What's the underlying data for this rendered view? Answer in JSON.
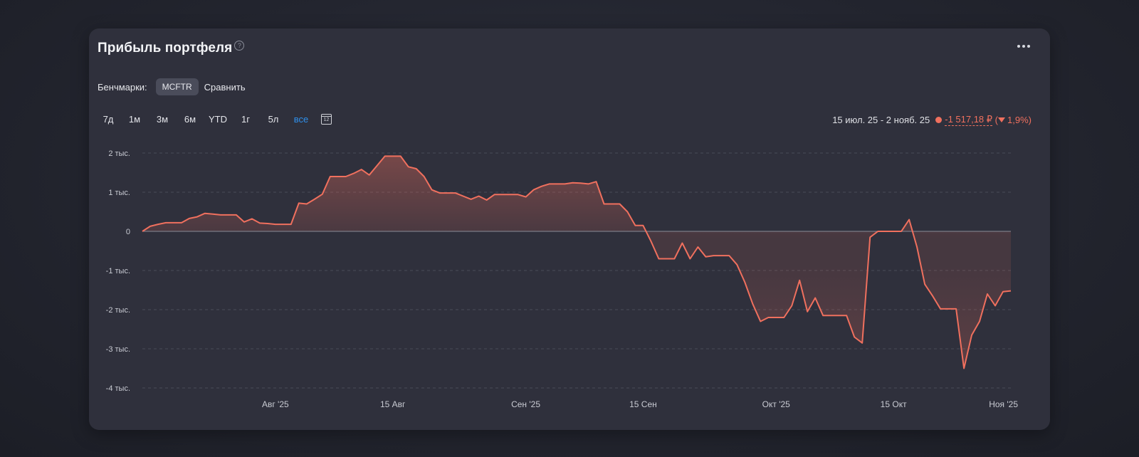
{
  "header": {
    "title": "Прибыль портфеля",
    "help_icon": "?"
  },
  "benchmarks": {
    "label": "Бенчмарки:",
    "chip": "MCFTR",
    "compare": "Сравнить"
  },
  "periods": [
    {
      "label": "7д",
      "active": false
    },
    {
      "label": "1м",
      "active": false
    },
    {
      "label": "3м",
      "active": false
    },
    {
      "label": "6м",
      "active": false
    },
    {
      "label": "YTD",
      "active": false
    },
    {
      "label": "1г",
      "active": false
    },
    {
      "label": "5л",
      "active": false
    },
    {
      "label": "все",
      "active": true
    }
  ],
  "summary": {
    "range": "15 июл. 25 - 2 нояб. 25",
    "value": "-1 517,18 ₽",
    "percent": "1,9%"
  },
  "colors": {
    "line": "#f0705e",
    "active_period": "#2f8fea"
  },
  "chart_data": {
    "type": "area",
    "ylim": [
      -4000,
      2000
    ],
    "y_ticks": [
      2000,
      1000,
      0,
      -1000,
      -2000,
      -3000,
      -4000
    ],
    "y_tick_labels": [
      "2 тыс.",
      "1 тыс.",
      "0",
      "-1 тыс.",
      "-2 тыс.",
      "-3 тыс.",
      "-4 тыс."
    ],
    "x_ticks": [
      "Авг '25",
      "15 Авг",
      "Сен '25",
      "15 Сен",
      "Окт '25",
      "15 Окт",
      "Ноя '25"
    ],
    "x_tick_index": [
      17,
      32,
      49,
      64,
      81,
      96,
      112
    ],
    "xlim_index": [
      0,
      111
    ],
    "values": [
      0,
      130,
      180,
      220,
      220,
      220,
      330,
      370,
      460,
      440,
      420,
      420,
      420,
      240,
      320,
      210,
      200,
      180,
      180,
      180,
      720,
      700,
      820,
      950,
      1400,
      1400,
      1400,
      1480,
      1580,
      1440,
      1680,
      1920,
      1920,
      1920,
      1650,
      1600,
      1400,
      1060,
      980,
      980,
      980,
      900,
      820,
      900,
      800,
      940,
      940,
      940,
      940,
      880,
      1060,
      1150,
      1210,
      1210,
      1210,
      1240,
      1230,
      1210,
      1270,
      700,
      700,
      700,
      500,
      150,
      150,
      -250,
      -700,
      -700,
      -700,
      -300,
      -700,
      -400,
      -650,
      -620,
      -620,
      -620,
      -850,
      -1300,
      -1850,
      -2300,
      -2200,
      -2200,
      -2200,
      -1900,
      -1250,
      -2050,
      -1700,
      -2150,
      -2150,
      -2150,
      -2150,
      -2700,
      -2850,
      -150,
      0,
      0,
      0,
      0,
      300,
      -400,
      -1350,
      -1650,
      -1980,
      -1980,
      -1980,
      -3500,
      -2650,
      -2300,
      -1600,
      -1900,
      -1540,
      -1520
    ]
  }
}
